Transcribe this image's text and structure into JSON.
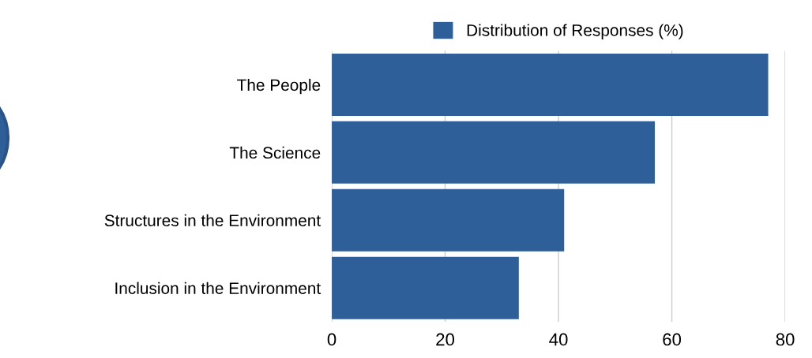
{
  "chart_data": {
    "type": "bar",
    "orientation": "horizontal",
    "categories": [
      "The People",
      "The Science",
      "Structures in the Environment",
      "Inclusion in the Environment"
    ],
    "series": [
      {
        "name": "Distribution of Responses (%)",
        "color": "#2e5f99",
        "values": [
          77,
          57,
          41,
          33
        ]
      }
    ],
    "xlim": [
      0,
      80
    ],
    "xticks": [
      0,
      20,
      40,
      60,
      80
    ],
    "grid": "x",
    "legend": "top"
  }
}
